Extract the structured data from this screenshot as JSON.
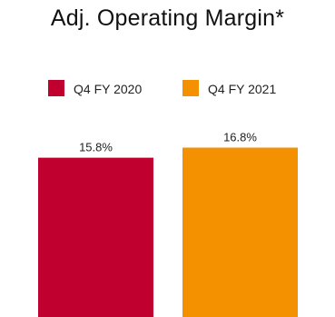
{
  "chart_data": {
    "type": "bar",
    "title": "Adj. Operating Margin*",
    "categories": [
      "Q4 FY 2020",
      "Q4 FY 2021"
    ],
    "series": [
      {
        "name": "Adj. Operating Margin*",
        "values": [
          15.8,
          16.8
        ],
        "labels": [
          "15.8%",
          "16.8%"
        ]
      }
    ],
    "colors": [
      "#c0002f",
      "#f39100"
    ],
    "legend": {
      "placement": "top-center",
      "entries": [
        "Q4 FY 2020",
        "Q4 FY 2021"
      ]
    },
    "ylim": [
      0,
      18.8
    ],
    "grid": false,
    "xlabel": "",
    "ylabel": ""
  }
}
